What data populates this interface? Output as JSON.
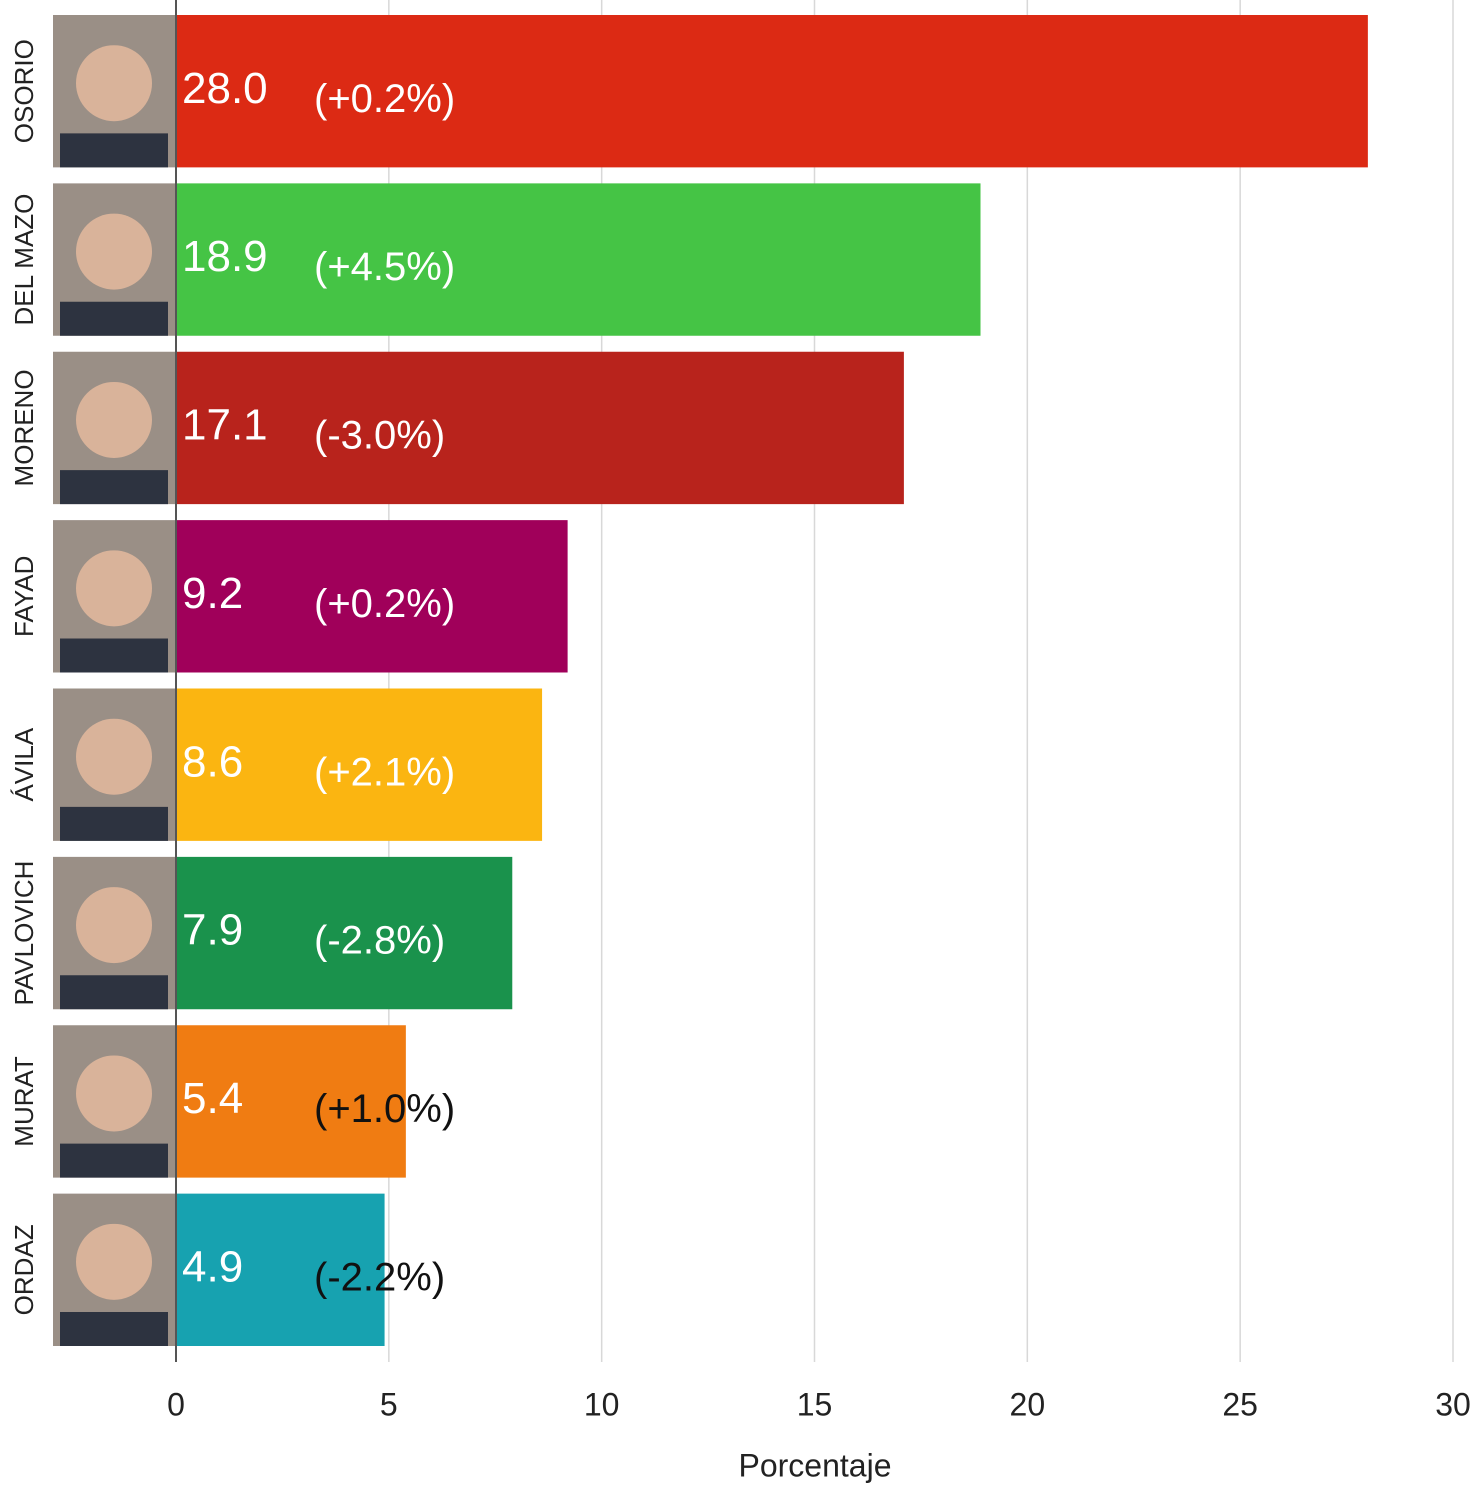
{
  "chart_data": {
    "type": "bar",
    "orientation": "horizontal",
    "categories": [
      "OSORIO",
      "DEL MAZO",
      "MORENO",
      "FAYAD",
      "ÁVILA",
      "PAVLOVICH",
      "MURAT",
      "ORDAZ"
    ],
    "values": [
      28.0,
      18.9,
      17.1,
      9.2,
      8.6,
      7.9,
      5.4,
      4.9
    ],
    "value_labels": [
      "28.0",
      "18.9",
      "17.1",
      "9.2",
      "8.6",
      "7.9",
      "5.4",
      "4.9"
    ],
    "change_labels": [
      "(+0.2%)",
      "(+4.5%)",
      "(-3.0%)",
      "(+0.2%)",
      "(+2.1%)",
      "(-2.8%)",
      "(+1.0%)",
      "(-2.2%)"
    ],
    "colors": [
      "#dc2a14",
      "#45c445",
      "#b8231c",
      "#a0005a",
      "#fbb511",
      "#1a924c",
      "#f07c12",
      "#17a2b0"
    ],
    "xlabel": "Porcentaje",
    "xlim": [
      0,
      30
    ],
    "xticks": [
      0,
      5,
      10,
      15,
      20,
      25,
      30
    ],
    "grid": true
  }
}
